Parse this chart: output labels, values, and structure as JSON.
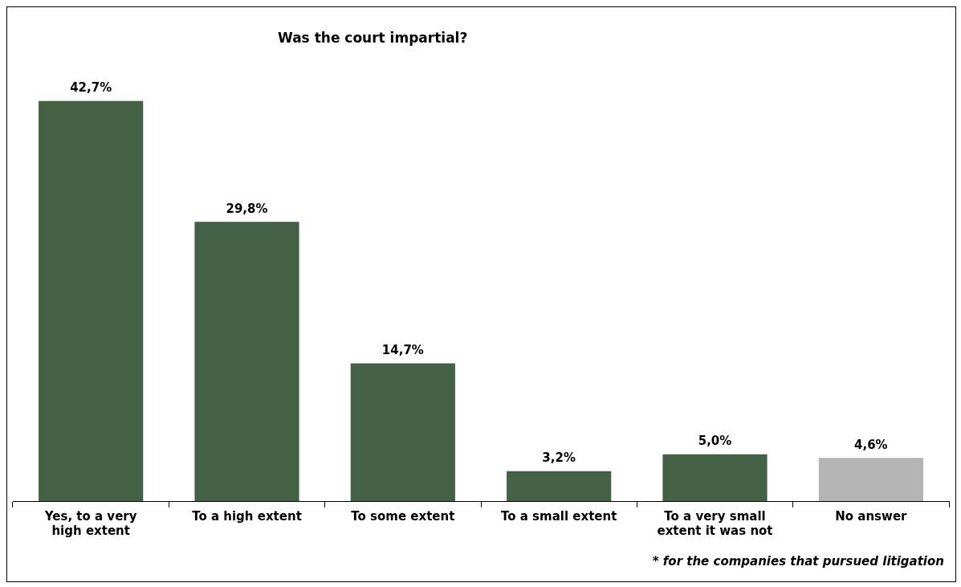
{
  "chart_data": {
    "type": "bar",
    "title": "Was the court impartial?",
    "categories": [
      "Yes, to a very high extent",
      "To a high extent",
      "To some extent",
      "To a small extent",
      "To a very small extent it was not",
      "No answer"
    ],
    "values": [
      42.7,
      29.8,
      14.7,
      3.2,
      5.0,
      4.6
    ],
    "colors": [
      "#436144",
      "#436144",
      "#436144",
      "#436144",
      "#436144",
      "#b4b4b4"
    ],
    "value_labels": [
      "42,7%",
      "29,8%",
      "14,7%",
      "3,2%",
      "5,0%",
      "4,6%"
    ],
    "tick_labels": "x",
    "grid": false,
    "legend": false,
    "annotations": [
      "* for the companies that pursued litigation"
    ]
  }
}
